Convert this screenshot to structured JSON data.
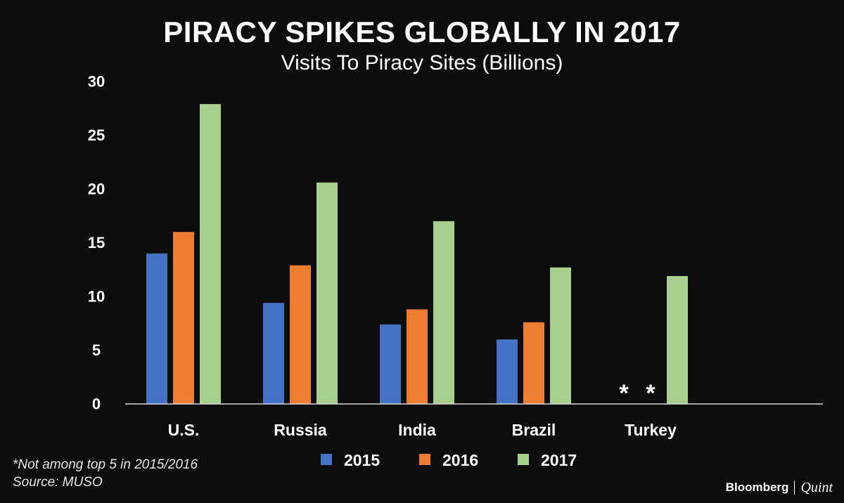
{
  "chart_data": {
    "type": "bar",
    "title": "PIRACY SPIKES GLOBALLY IN 2017",
    "subtitle": "Visits To Piracy Sites (Billions)",
    "categories": [
      "U.S.",
      "Russia",
      "India",
      "Brazil",
      "Turkey"
    ],
    "series": [
      {
        "name": "2015",
        "color": "#4472c4",
        "values": [
          14.0,
          9.4,
          7.4,
          6.0,
          null
        ]
      },
      {
        "name": "2016",
        "color": "#ed7d31",
        "values": [
          16.0,
          12.9,
          8.8,
          7.6,
          null
        ]
      },
      {
        "name": "2017",
        "color": "#a9d18e",
        "values": [
          27.9,
          20.6,
          17.0,
          12.7,
          11.9
        ]
      }
    ],
    "ylim": [
      0,
      30
    ],
    "yticks": [
      0,
      5,
      10,
      15,
      20,
      25,
      30
    ],
    "ytick_labels": [
      "0",
      "5",
      "10",
      "15",
      "20",
      "25",
      "30"
    ],
    "xlabel": "",
    "ylabel": "",
    "grid": false,
    "legend_position": "bottom-center",
    "missing_marker": "*",
    "missing_note": "*Not among top 5 in 2015/2016",
    "source": "Source: MUSO"
  },
  "brand": {
    "name": "Bloomberg",
    "partner": "Quint"
  }
}
